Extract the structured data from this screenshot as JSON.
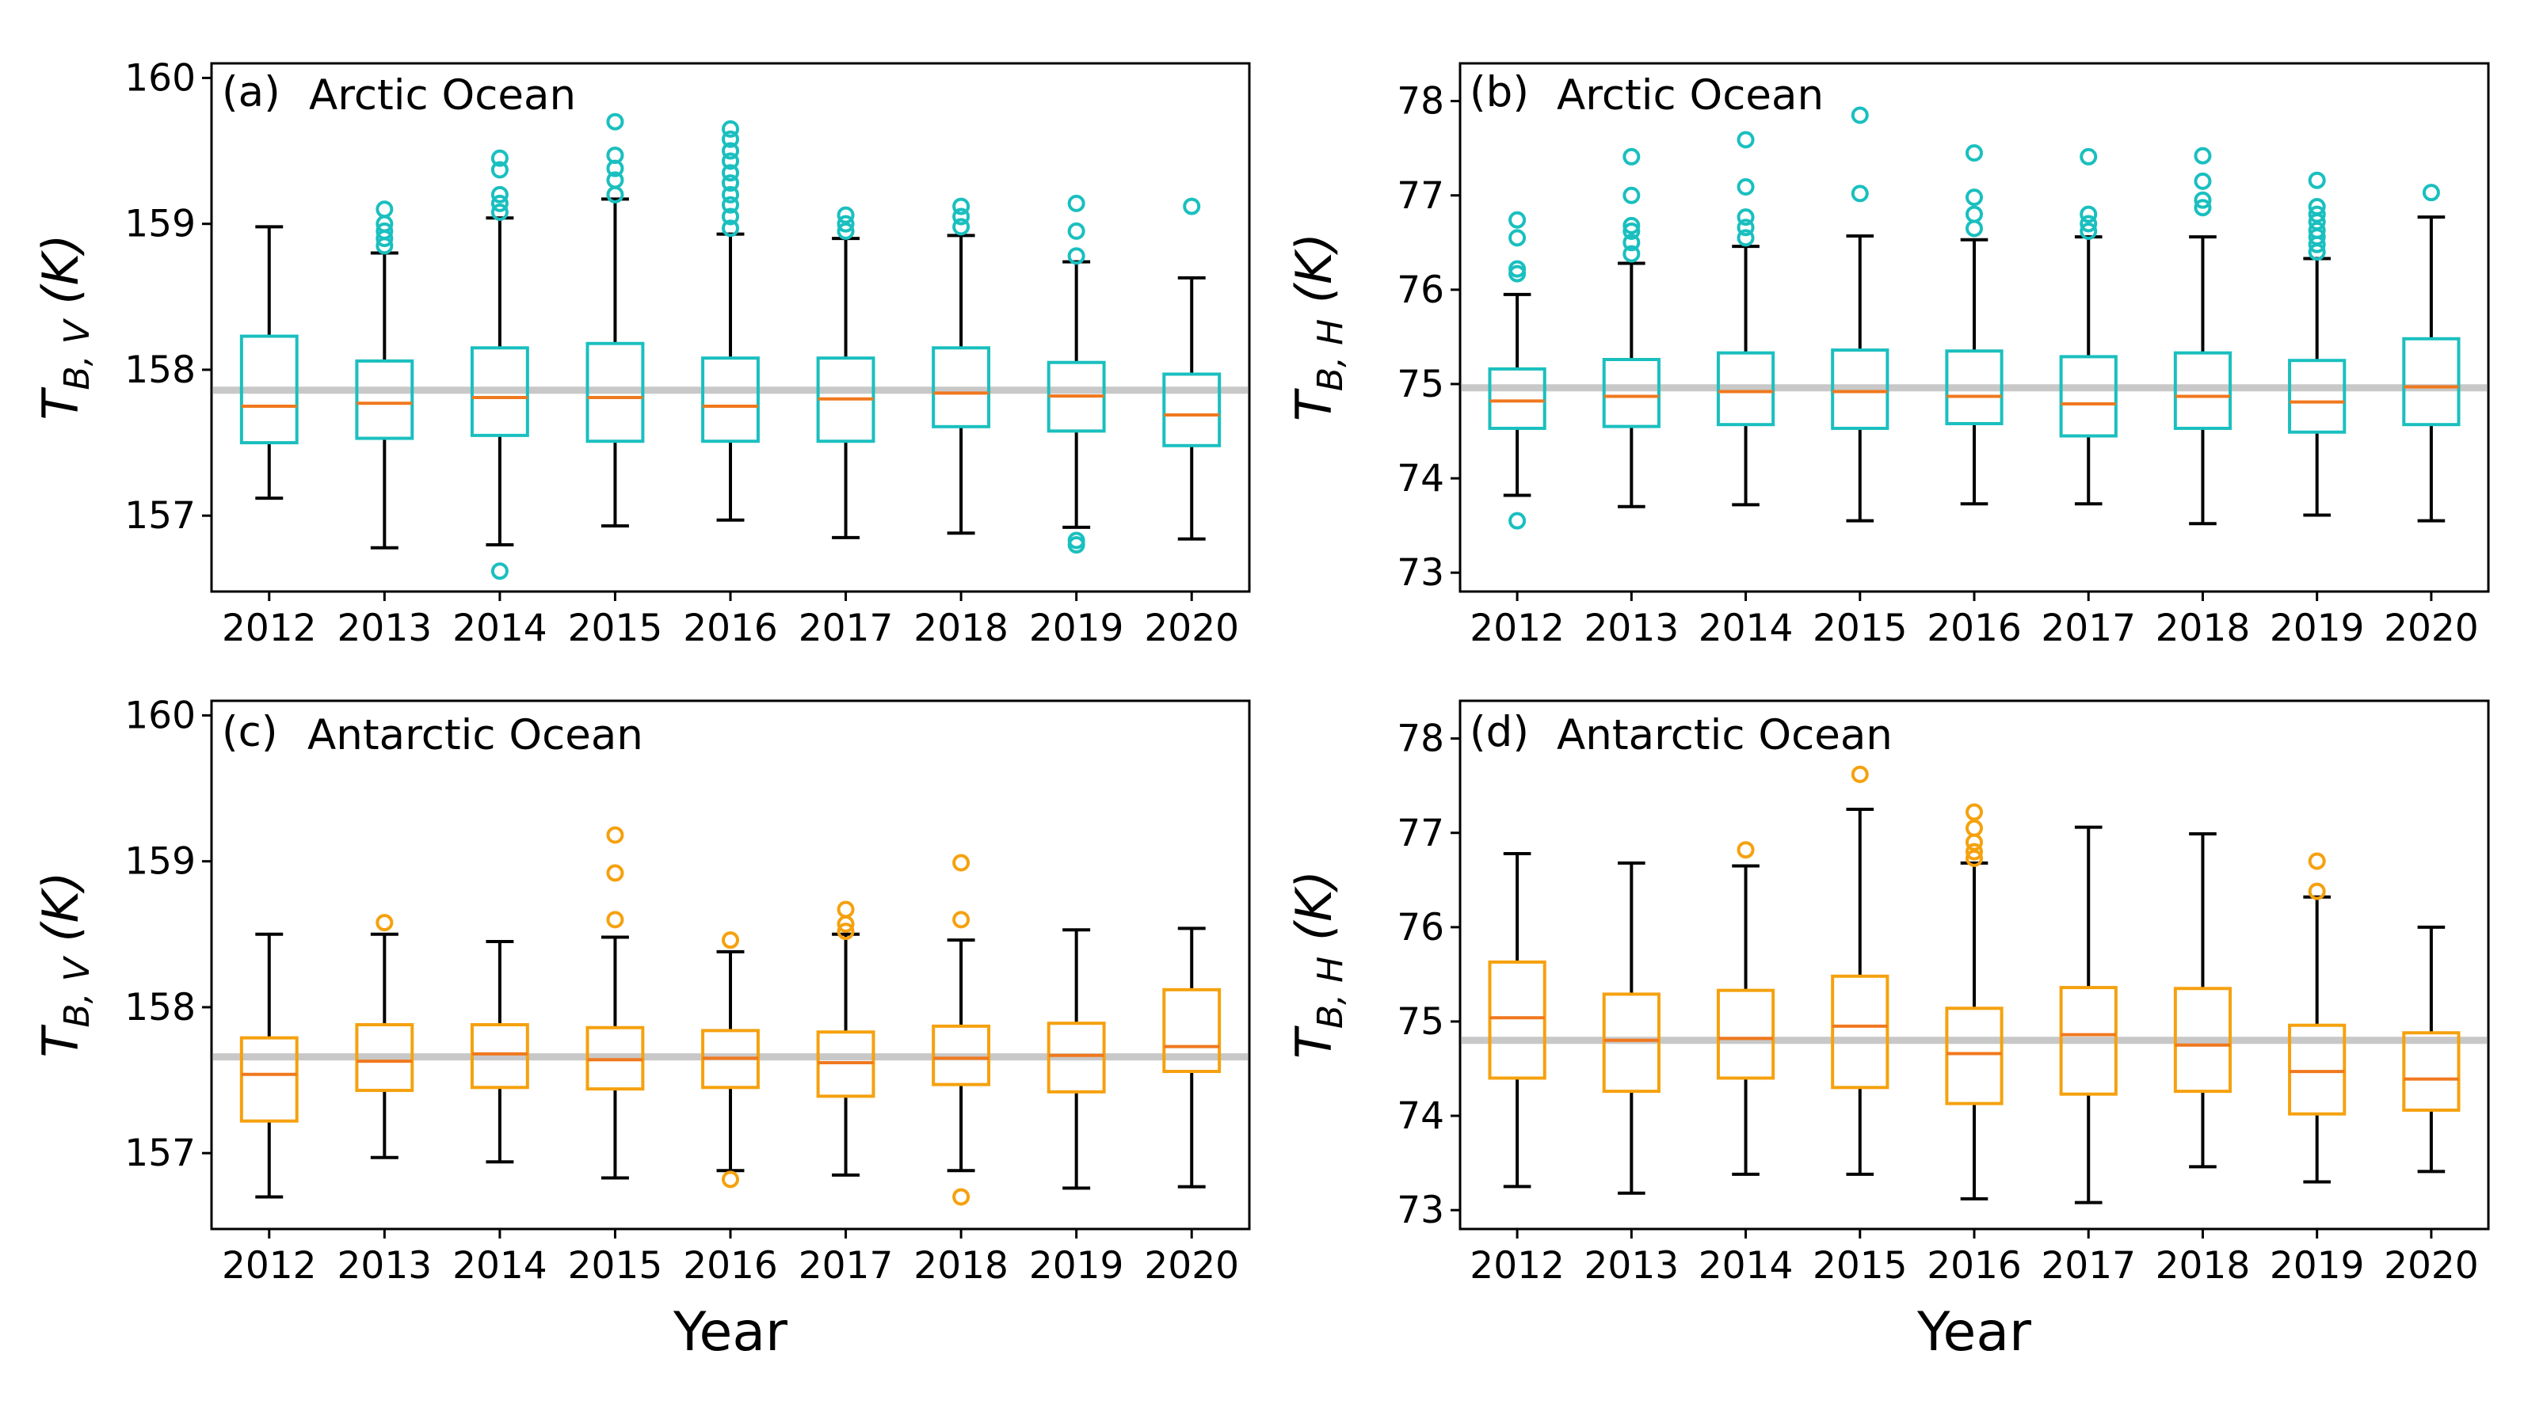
{
  "colors": {
    "arctic": "#1ABFBF",
    "antarctic": "#F5A10E",
    "median": "#F0781E",
    "whisker": "#000000",
    "reference_line": "#C8C8C8"
  },
  "chart_data": [
    {
      "id": "a",
      "type": "box",
      "panel_label": "(a)",
      "title": "Arctic Ocean",
      "ylabel_main": "T",
      "ylabel_sub": "B, V",
      "ylabel_unit": " (K)",
      "xlabel": "",
      "ylim": [
        156.48,
        160.1
      ],
      "yticks": [
        "157",
        "158",
        "159",
        "160"
      ],
      "reference_line": 157.86,
      "color": "#1ABFBF",
      "categories": [
        "2012",
        "2013",
        "2014",
        "2015",
        "2016",
        "2017",
        "2018",
        "2019",
        "2020"
      ],
      "boxes": [
        {
          "whislo": 157.12,
          "q1": 157.5,
          "med": 157.75,
          "q3": 158.23,
          "whishi": 158.98,
          "fliers": []
        },
        {
          "whislo": 156.78,
          "q1": 157.53,
          "med": 157.77,
          "q3": 158.06,
          "whishi": 158.8,
          "fliers": [
            158.85,
            158.9,
            158.95,
            159.0,
            159.1
          ]
        },
        {
          "whislo": 156.8,
          "q1": 157.55,
          "med": 157.81,
          "q3": 158.15,
          "whishi": 159.04,
          "fliers": [
            156.62,
            159.08,
            159.14,
            159.2,
            159.37,
            159.45
          ]
        },
        {
          "whislo": 156.93,
          "q1": 157.51,
          "med": 157.81,
          "q3": 158.18,
          "whishi": 159.17,
          "fliers": [
            159.2,
            159.3,
            159.38,
            159.47,
            159.7
          ]
        },
        {
          "whislo": 156.97,
          "q1": 157.51,
          "med": 157.75,
          "q3": 158.08,
          "whishi": 158.93,
          "fliers": [
            158.97,
            159.05,
            159.13,
            159.2,
            159.28,
            159.35,
            159.43,
            159.5,
            159.58,
            159.65
          ]
        },
        {
          "whislo": 156.85,
          "q1": 157.51,
          "med": 157.8,
          "q3": 158.08,
          "whishi": 158.9,
          "fliers": [
            158.95,
            159.0,
            159.06
          ]
        },
        {
          "whislo": 156.88,
          "q1": 157.61,
          "med": 157.84,
          "q3": 158.15,
          "whishi": 158.92,
          "fliers": [
            158.98,
            159.05,
            159.12
          ]
        },
        {
          "whislo": 156.92,
          "q1": 157.58,
          "med": 157.82,
          "q3": 158.05,
          "whishi": 158.74,
          "fliers": [
            156.8,
            156.83,
            158.78,
            158.95,
            159.14
          ]
        },
        {
          "whislo": 156.84,
          "q1": 157.48,
          "med": 157.69,
          "q3": 157.97,
          "whishi": 158.63,
          "fliers": [
            159.12
          ]
        }
      ]
    },
    {
      "id": "b",
      "type": "box",
      "panel_label": "(b)",
      "title": "Arctic Ocean",
      "ylabel_main": "T",
      "ylabel_sub": "B, H",
      "ylabel_unit": " (K)",
      "xlabel": "",
      "ylim": [
        72.8,
        78.4
      ],
      "yticks": [
        "73",
        "74",
        "75",
        "76",
        "77",
        "78"
      ],
      "reference_line": 74.96,
      "color": "#1ABFBF",
      "categories": [
        "2012",
        "2013",
        "2014",
        "2015",
        "2016",
        "2017",
        "2018",
        "2019",
        "2020"
      ],
      "boxes": [
        {
          "whislo": 73.82,
          "q1": 74.53,
          "med": 74.82,
          "q3": 75.16,
          "whishi": 75.95,
          "fliers": [
            73.55,
            76.17,
            76.22,
            76.55,
            76.74
          ]
        },
        {
          "whislo": 73.7,
          "q1": 74.55,
          "med": 74.87,
          "q3": 75.26,
          "whishi": 76.28,
          "fliers": [
            76.38,
            76.5,
            76.62,
            76.68,
            77.0,
            77.41
          ]
        },
        {
          "whislo": 73.72,
          "q1": 74.57,
          "med": 74.92,
          "q3": 75.33,
          "whishi": 76.46,
          "fliers": [
            76.55,
            76.66,
            76.77,
            77.09,
            77.59
          ]
        },
        {
          "whislo": 73.55,
          "q1": 74.53,
          "med": 74.92,
          "q3": 75.36,
          "whishi": 76.57,
          "fliers": [
            77.02,
            77.85
          ]
        },
        {
          "whislo": 73.73,
          "q1": 74.58,
          "med": 74.87,
          "q3": 75.35,
          "whishi": 76.53,
          "fliers": [
            76.65,
            76.8,
            76.98,
            77.45
          ]
        },
        {
          "whislo": 73.73,
          "q1": 74.45,
          "med": 74.79,
          "q3": 75.29,
          "whishi": 76.56,
          "fliers": [
            76.62,
            76.7,
            76.8,
            77.41
          ]
        },
        {
          "whislo": 73.52,
          "q1": 74.53,
          "med": 74.87,
          "q3": 75.33,
          "whishi": 76.56,
          "fliers": [
            76.87,
            76.95,
            77.15,
            77.42
          ]
        },
        {
          "whislo": 73.61,
          "q1": 74.49,
          "med": 74.81,
          "q3": 75.25,
          "whishi": 76.33,
          "fliers": [
            76.4,
            76.48,
            76.56,
            76.63,
            76.72,
            76.8,
            76.88,
            77.16
          ]
        },
        {
          "whislo": 73.55,
          "q1": 74.57,
          "med": 74.97,
          "q3": 75.48,
          "whishi": 76.77,
          "fliers": [
            77.03
          ]
        }
      ]
    },
    {
      "id": "c",
      "type": "box",
      "panel_label": "(c)",
      "title": "Antarctic Ocean",
      "ylabel_main": "T",
      "ylabel_sub": "B, V",
      "ylabel_unit": " (K)",
      "xlabel": "Year",
      "ylim": [
        156.48,
        160.1
      ],
      "yticks": [
        "157",
        "158",
        "159",
        "160"
      ],
      "reference_line": 157.66,
      "color": "#F5A10E",
      "categories": [
        "2012",
        "2013",
        "2014",
        "2015",
        "2016",
        "2017",
        "2018",
        "2019",
        "2020"
      ],
      "boxes": [
        {
          "whislo": 156.7,
          "q1": 157.22,
          "med": 157.54,
          "q3": 157.79,
          "whishi": 158.5,
          "fliers": []
        },
        {
          "whislo": 156.97,
          "q1": 157.43,
          "med": 157.63,
          "q3": 157.88,
          "whishi": 158.5,
          "fliers": [
            158.58
          ]
        },
        {
          "whislo": 156.94,
          "q1": 157.45,
          "med": 157.68,
          "q3": 157.88,
          "whishi": 158.45,
          "fliers": []
        },
        {
          "whislo": 156.83,
          "q1": 157.44,
          "med": 157.64,
          "q3": 157.86,
          "whishi": 158.48,
          "fliers": [
            158.6,
            158.92,
            159.18
          ]
        },
        {
          "whislo": 156.88,
          "q1": 157.45,
          "med": 157.65,
          "q3": 157.84,
          "whishi": 158.38,
          "fliers": [
            156.82,
            158.46
          ]
        },
        {
          "whislo": 156.85,
          "q1": 157.39,
          "med": 157.62,
          "q3": 157.83,
          "whishi": 158.5,
          "fliers": [
            158.52,
            158.57,
            158.67
          ]
        },
        {
          "whislo": 156.88,
          "q1": 157.47,
          "med": 157.65,
          "q3": 157.87,
          "whishi": 158.46,
          "fliers": [
            156.7,
            158.6,
            158.99
          ]
        },
        {
          "whislo": 156.76,
          "q1": 157.42,
          "med": 157.67,
          "q3": 157.89,
          "whishi": 158.53,
          "fliers": []
        },
        {
          "whislo": 156.77,
          "q1": 157.56,
          "med": 157.73,
          "q3": 158.12,
          "whishi": 158.54,
          "fliers": []
        }
      ]
    },
    {
      "id": "d",
      "type": "box",
      "panel_label": "(d)",
      "title": "Antarctic Ocean",
      "ylabel_main": "T",
      "ylabel_sub": "B, H",
      "ylabel_unit": " (K)",
      "xlabel": "Year",
      "ylim": [
        72.8,
        78.4
      ],
      "yticks": [
        "73",
        "74",
        "75",
        "76",
        "77",
        "78"
      ],
      "reference_line": 74.8,
      "color": "#F5A10E",
      "categories": [
        "2012",
        "2013",
        "2014",
        "2015",
        "2016",
        "2017",
        "2018",
        "2019",
        "2020"
      ],
      "boxes": [
        {
          "whislo": 73.25,
          "q1": 74.4,
          "med": 75.04,
          "q3": 75.63,
          "whishi": 76.78,
          "fliers": []
        },
        {
          "whislo": 73.18,
          "q1": 74.26,
          "med": 74.8,
          "q3": 75.29,
          "whishi": 76.68,
          "fliers": []
        },
        {
          "whislo": 73.38,
          "q1": 74.4,
          "med": 74.82,
          "q3": 75.33,
          "whishi": 76.65,
          "fliers": [
            76.82
          ]
        },
        {
          "whislo": 73.38,
          "q1": 74.3,
          "med": 74.95,
          "q3": 75.48,
          "whishi": 77.25,
          "fliers": [
            77.62
          ]
        },
        {
          "whislo": 73.12,
          "q1": 74.13,
          "med": 74.66,
          "q3": 75.14,
          "whishi": 76.68,
          "fliers": [
            76.73,
            76.8,
            76.9,
            77.05,
            77.22
          ]
        },
        {
          "whislo": 73.08,
          "q1": 74.23,
          "med": 74.86,
          "q3": 75.36,
          "whishi": 77.06,
          "fliers": []
        },
        {
          "whislo": 73.46,
          "q1": 74.26,
          "med": 74.75,
          "q3": 75.35,
          "whishi": 76.99,
          "fliers": []
        },
        {
          "whislo": 73.3,
          "q1": 74.02,
          "med": 74.47,
          "q3": 74.96,
          "whishi": 76.32,
          "fliers": [
            76.38,
            76.7
          ]
        },
        {
          "whislo": 73.41,
          "q1": 74.06,
          "med": 74.39,
          "q3": 74.88,
          "whishi": 76.0,
          "fliers": []
        }
      ]
    }
  ]
}
